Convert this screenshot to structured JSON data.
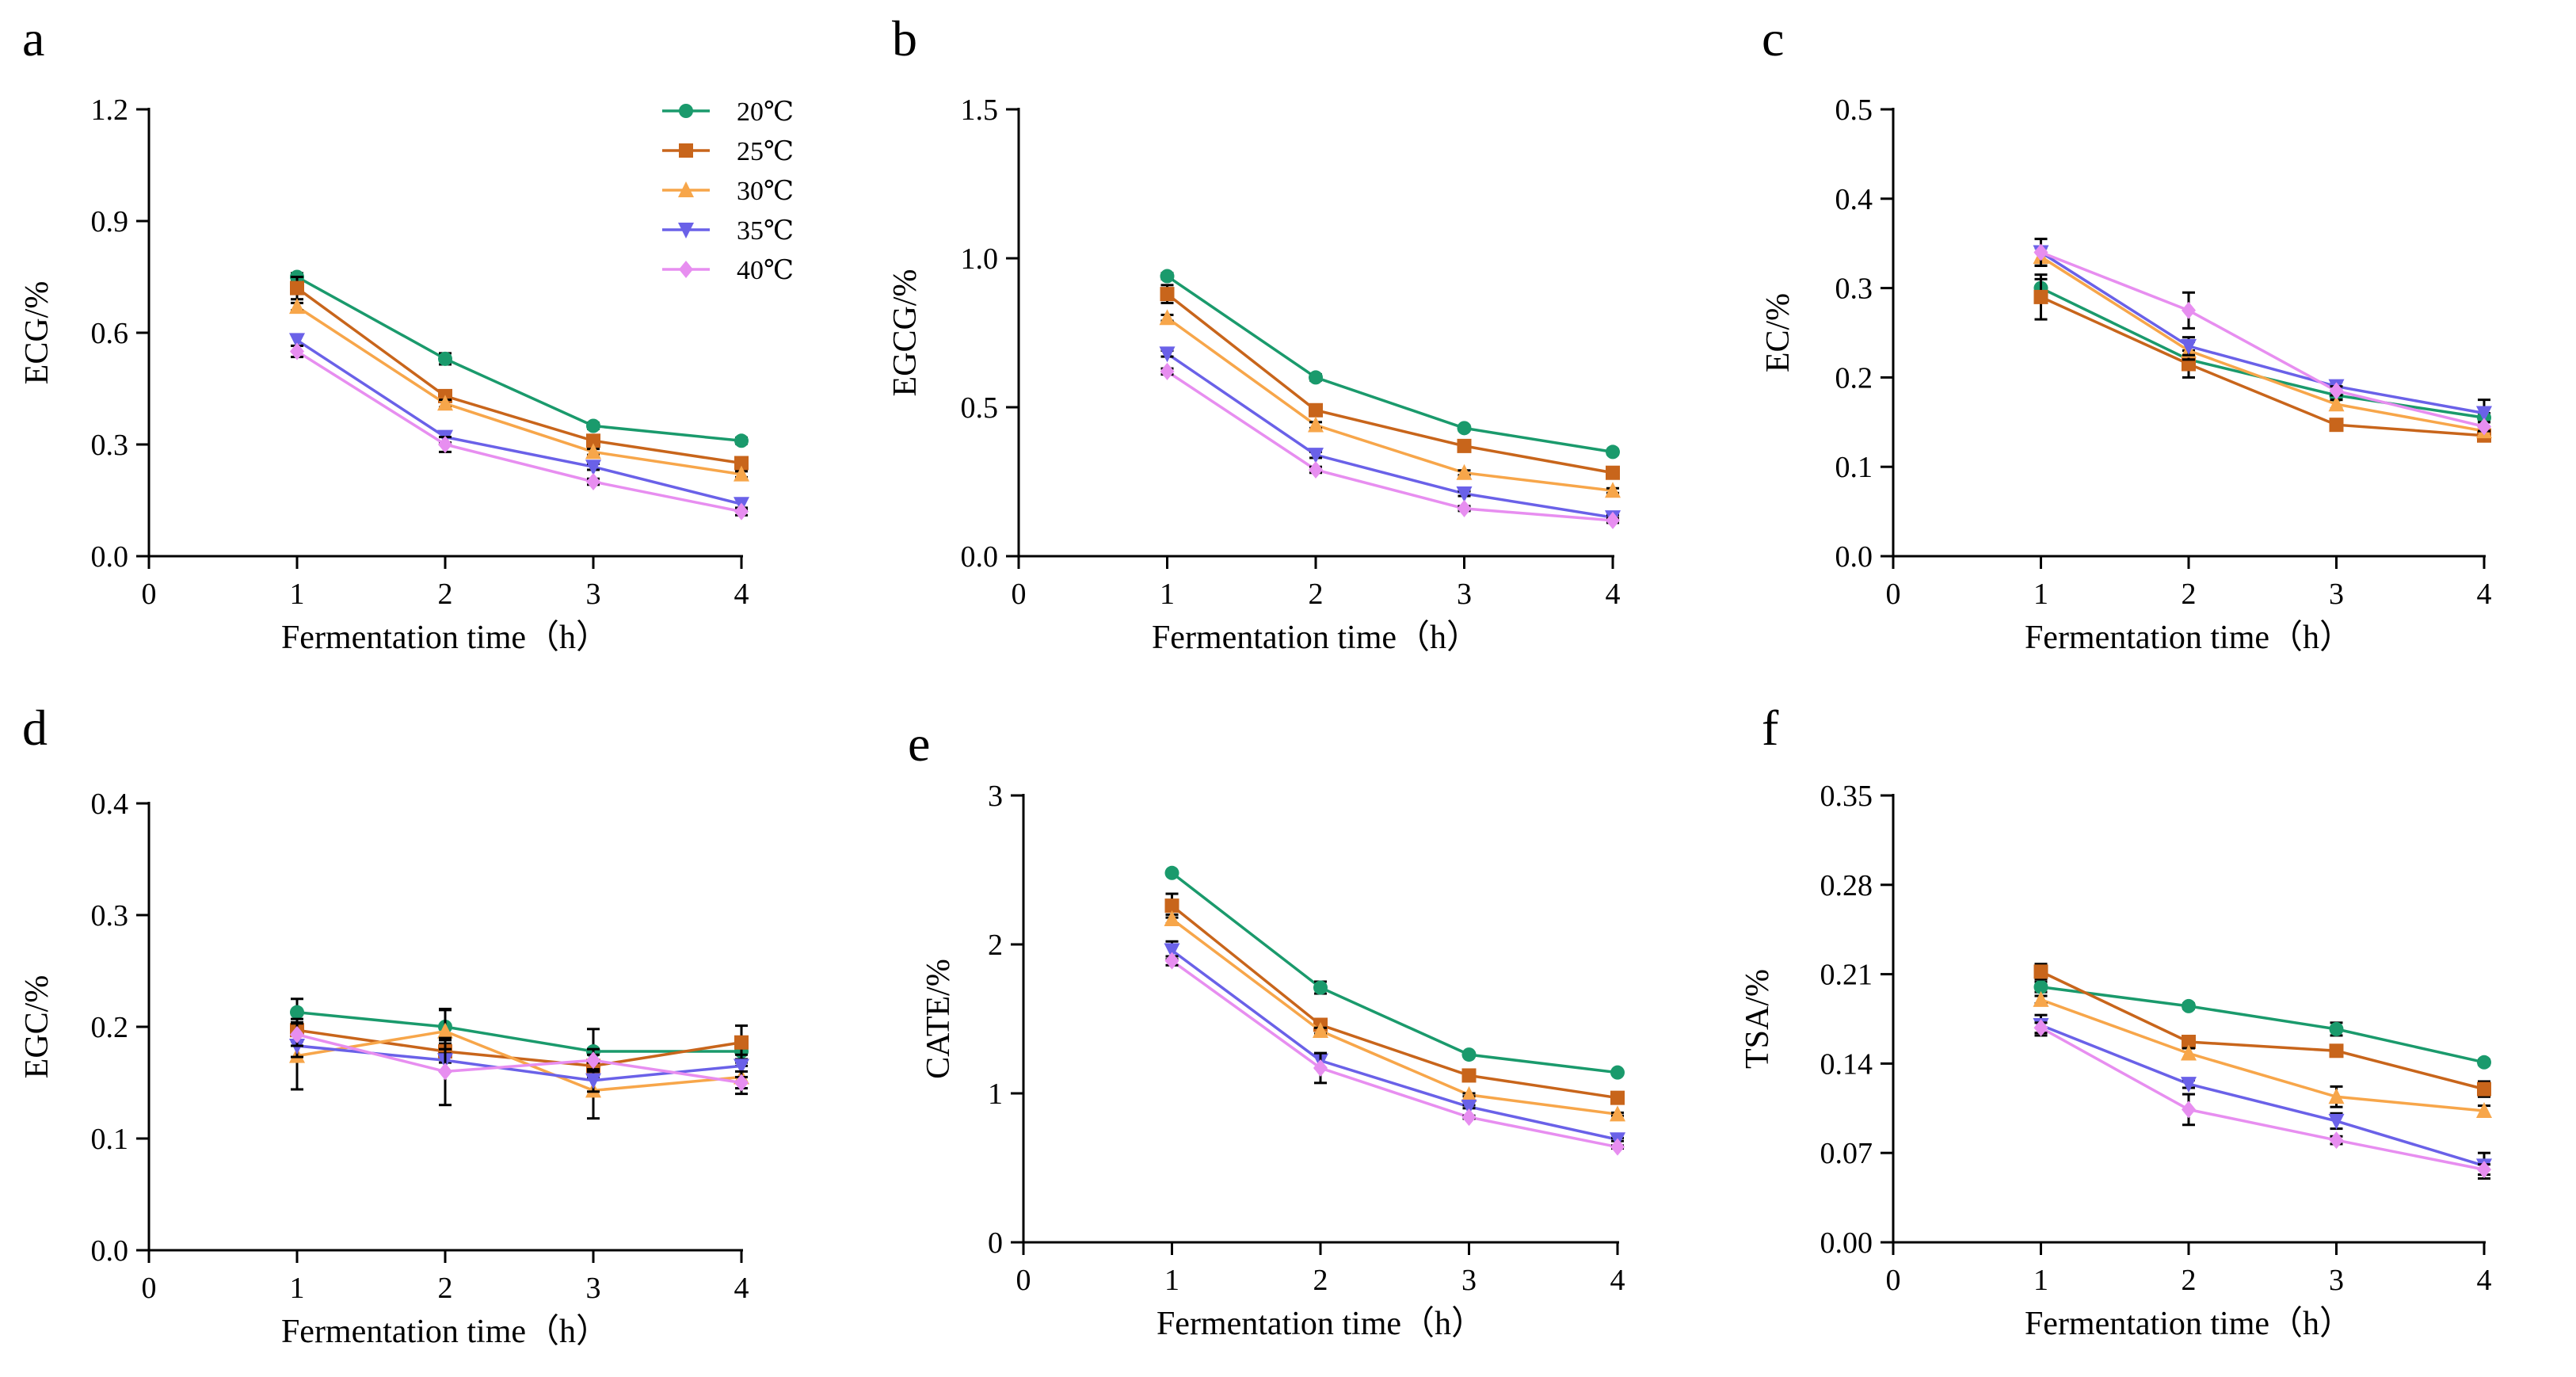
{
  "series_meta": [
    {
      "name": "20℃",
      "color": "#1a9a6c",
      "marker": "circle"
    },
    {
      "name": "25℃",
      "color": "#c8651b",
      "marker": "square"
    },
    {
      "name": "30℃",
      "color": "#f7a64a",
      "marker": "triangle"
    },
    {
      "name": "35℃",
      "color": "#6a61e8",
      "marker": "triangle-down"
    },
    {
      "name": "40℃",
      "color": "#e78ef0",
      "marker": "diamond"
    }
  ],
  "chart_data": [
    {
      "type": "line",
      "panel": "a",
      "title": "",
      "xlabel": "Fermentation time（h）",
      "ylabel": "ECG/%",
      "xlim": [
        0,
        4
      ],
      "ylim": [
        0,
        1.2
      ],
      "x_ticks": [
        "0",
        "1",
        "2",
        "3",
        "4"
      ],
      "y_ticks": [
        "0.0",
        "0.3",
        "0.6",
        "0.9",
        "1.2"
      ],
      "y_tick_values": [
        0,
        0.3,
        0.6,
        0.9,
        1.2
      ],
      "x": [
        1,
        2,
        3,
        4
      ],
      "legend": "top-right",
      "series": [
        {
          "name": "20℃",
          "values": [
            0.75,
            0.53,
            0.35,
            0.31
          ],
          "errors": [
            0.01,
            0.015,
            0.008,
            0.008
          ]
        },
        {
          "name": "25℃",
          "values": [
            0.72,
            0.43,
            0.31,
            0.25
          ],
          "errors": [
            0.03,
            0.01,
            0.008,
            0.008
          ]
        },
        {
          "name": "30℃",
          "values": [
            0.67,
            0.41,
            0.28,
            0.22
          ],
          "errors": [
            0.01,
            0.01,
            0.008,
            0.008
          ]
        },
        {
          "name": "35℃",
          "values": [
            0.58,
            0.32,
            0.24,
            0.14
          ],
          "errors": [
            0.015,
            0.015,
            0.008,
            0.015
          ]
        },
        {
          "name": "40℃",
          "values": [
            0.55,
            0.3,
            0.2,
            0.12
          ],
          "errors": [
            0.015,
            0.02,
            0.008,
            0.01
          ]
        }
      ]
    },
    {
      "type": "line",
      "panel": "b",
      "title": "",
      "xlabel": "Fermentation time（h）",
      "ylabel": "EGCG/%",
      "xlim": [
        0,
        4
      ],
      "ylim": [
        0,
        1.5
      ],
      "x_ticks": [
        "0",
        "1",
        "2",
        "3",
        "4"
      ],
      "y_ticks": [
        "0.0",
        "0.5",
        "1.0",
        "1.5"
      ],
      "y_tick_values": [
        0,
        0.5,
        1.0,
        1.5
      ],
      "x": [
        1,
        2,
        3,
        4
      ],
      "series": [
        {
          "name": "20℃",
          "values": [
            0.94,
            0.6,
            0.43,
            0.35
          ],
          "errors": [
            0.01,
            0.01,
            0.008,
            0.008
          ]
        },
        {
          "name": "25℃",
          "values": [
            0.88,
            0.49,
            0.37,
            0.28
          ],
          "errors": [
            0.03,
            0.01,
            0.008,
            0.008
          ]
        },
        {
          "name": "30℃",
          "values": [
            0.8,
            0.44,
            0.28,
            0.22
          ],
          "errors": [
            0.01,
            0.01,
            0.008,
            0.008
          ]
        },
        {
          "name": "35℃",
          "values": [
            0.68,
            0.34,
            0.21,
            0.13
          ],
          "errors": [
            0.01,
            0.01,
            0.008,
            0.008
          ]
        },
        {
          "name": "40℃",
          "values": [
            0.62,
            0.29,
            0.16,
            0.12
          ],
          "errors": [
            0.01,
            0.01,
            0.008,
            0.008
          ]
        }
      ]
    },
    {
      "type": "line",
      "panel": "c",
      "title": "",
      "xlabel": "Fermentation time（h）",
      "ylabel": "EC/%",
      "xlim": [
        0,
        4
      ],
      "ylim": [
        0,
        0.5
      ],
      "x_ticks": [
        "0",
        "1",
        "2",
        "3",
        "4"
      ],
      "y_ticks": [
        "0.0",
        "0.1",
        "0.2",
        "0.3",
        "0.4",
        "0.5"
      ],
      "y_tick_values": [
        0,
        0.1,
        0.2,
        0.3,
        0.4,
        0.5
      ],
      "x": [
        1,
        2,
        3,
        4
      ],
      "series": [
        {
          "name": "20℃",
          "values": [
            0.3,
            0.22,
            0.18,
            0.155
          ],
          "errors": [
            0.01,
            0.01,
            0.005,
            0.005
          ]
        },
        {
          "name": "25℃",
          "values": [
            0.29,
            0.215,
            0.147,
            0.135
          ],
          "errors": [
            0.025,
            0.015,
            0.004,
            0.005
          ]
        },
        {
          "name": "30℃",
          "values": [
            0.335,
            0.23,
            0.17,
            0.14
          ],
          "errors": [
            0.01,
            0.01,
            0.005,
            0.005
          ]
        },
        {
          "name": "35℃",
          "values": [
            0.34,
            0.235,
            0.19,
            0.16
          ],
          "errors": [
            0.015,
            0.01,
            0.005,
            0.015
          ]
        },
        {
          "name": "40℃",
          "values": [
            0.34,
            0.275,
            0.185,
            0.145
          ],
          "errors": [
            0.015,
            0.02,
            0.005,
            0.005
          ]
        }
      ]
    },
    {
      "type": "line",
      "panel": "d",
      "title": "",
      "xlabel": "Fermentation time（h）",
      "ylabel": "EGC/%",
      "xlim": [
        0,
        4
      ],
      "ylim": [
        0,
        0.4
      ],
      "x_ticks": [
        "0",
        "1",
        "2",
        "3",
        "4"
      ],
      "y_ticks": [
        "0.0",
        "0.1",
        "0.2",
        "0.3",
        "0.4"
      ],
      "y_tick_values": [
        0,
        0.1,
        0.2,
        0.3,
        0.4
      ],
      "x": [
        1,
        2,
        3,
        4
      ],
      "series": [
        {
          "name": "20℃",
          "values": [
            0.213,
            0.2,
            0.178,
            0.178
          ],
          "errors": [
            0.012,
            0.015,
            0.02,
            0.01
          ]
        },
        {
          "name": "25℃",
          "values": [
            0.197,
            0.178,
            0.165,
            0.186
          ],
          "errors": [
            0.01,
            0.01,
            0.01,
            0.015
          ]
        },
        {
          "name": "30℃",
          "values": [
            0.174,
            0.196,
            0.143,
            0.155
          ],
          "errors": [
            0.03,
            0.02,
            0.025,
            0.01
          ]
        },
        {
          "name": "35℃",
          "values": [
            0.183,
            0.17,
            0.152,
            0.165
          ],
          "errors": [
            0.01,
            0.01,
            0.01,
            0.01
          ]
        },
        {
          "name": "40℃",
          "values": [
            0.193,
            0.16,
            0.17,
            0.15
          ],
          "errors": [
            0.01,
            0.03,
            0.01,
            0.01
          ]
        }
      ]
    },
    {
      "type": "line",
      "panel": "e",
      "title": "",
      "xlabel": "Fermentation time（h）",
      "ylabel": "CATE/%",
      "xlim": [
        0,
        4
      ],
      "ylim": [
        0,
        3
      ],
      "x_ticks": [
        "0",
        "1",
        "2",
        "3",
        "4"
      ],
      "y_ticks": [
        "0",
        "1",
        "2",
        "3"
      ],
      "y_tick_values": [
        0,
        1,
        2,
        3
      ],
      "x": [
        1,
        2,
        3,
        4
      ],
      "series": [
        {
          "name": "20℃",
          "values": [
            2.48,
            1.71,
            1.26,
            1.14
          ],
          "errors": [
            0.01,
            0.04,
            0.01,
            0.01
          ]
        },
        {
          "name": "25℃",
          "values": [
            2.26,
            1.46,
            1.12,
            0.97
          ],
          "errors": [
            0.08,
            0.02,
            0.01,
            0.01
          ]
        },
        {
          "name": "30℃",
          "values": [
            2.17,
            1.42,
            0.99,
            0.86
          ],
          "errors": [
            0.03,
            0.02,
            0.01,
            0.01
          ]
        },
        {
          "name": "35℃",
          "values": [
            1.96,
            1.22,
            0.91,
            0.69
          ],
          "errors": [
            0.06,
            0.05,
            0.01,
            0.01
          ]
        },
        {
          "name": "40℃",
          "values": [
            1.89,
            1.17,
            0.84,
            0.64
          ],
          "errors": [
            0.03,
            0.1,
            0.01,
            0.01
          ]
        }
      ]
    },
    {
      "type": "line",
      "panel": "f",
      "title": "",
      "xlabel": "Fermentation time（h）",
      "ylabel": "TSA/%",
      "xlim": [
        0,
        4
      ],
      "ylim": [
        0,
        0.35
      ],
      "x_ticks": [
        "0",
        "1",
        "2",
        "3",
        "4"
      ],
      "y_ticks": [
        "0.00",
        "0.07",
        "0.14",
        "0.21",
        "0.28",
        "0.35"
      ],
      "y_tick_values": [
        0,
        0.07,
        0.14,
        0.21,
        0.28,
        0.35
      ],
      "x": [
        1,
        2,
        3,
        4
      ],
      "series": [
        {
          "name": "20℃",
          "values": [
            0.2,
            0.185,
            0.167,
            0.141
          ],
          "errors": [
            0.004,
            0.002,
            0.005,
            0.002
          ]
        },
        {
          "name": "25℃",
          "values": [
            0.212,
            0.157,
            0.15,
            0.12
          ],
          "errors": [
            0.006,
            0.004,
            0.003,
            0.006
          ]
        },
        {
          "name": "30℃",
          "values": [
            0.19,
            0.148,
            0.114,
            0.103
          ],
          "errors": [
            0.003,
            0.004,
            0.008,
            0.004
          ]
        },
        {
          "name": "35℃",
          "values": [
            0.17,
            0.124,
            0.095,
            0.06
          ],
          "errors": [
            0.008,
            0.003,
            0.006,
            0.01
          ]
        },
        {
          "name": "40℃",
          "values": [
            0.168,
            0.104,
            0.08,
            0.057
          ],
          "errors": [
            0.004,
            0.012,
            0.003,
            0.004
          ]
        }
      ]
    }
  ]
}
